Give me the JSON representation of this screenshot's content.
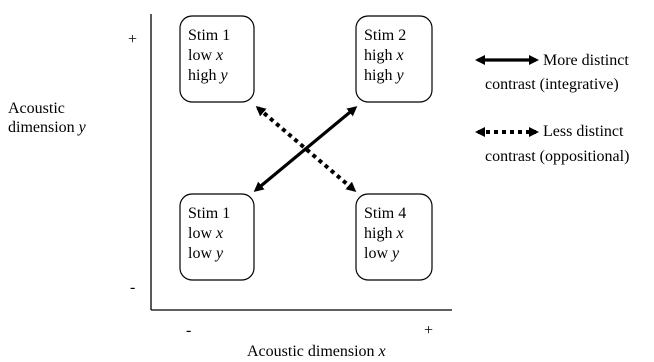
{
  "axes": {
    "y_label": [
      "Acoustic",
      "dimension",
      "y"
    ],
    "x_label": [
      "Acoustic dimension",
      "x"
    ],
    "y_plus": "+",
    "y_minus": "-",
    "x_minus": "-",
    "x_plus": "+"
  },
  "boxes": [
    {
      "name": "stim-box-top-left",
      "lines": [
        [
          "Stim 1",
          ""
        ],
        [
          "low ",
          "x"
        ],
        [
          "high ",
          "y"
        ]
      ]
    },
    {
      "name": "stim-box-top-right",
      "lines": [
        [
          "Stim 2",
          ""
        ],
        [
          "high ",
          "x"
        ],
        [
          "high ",
          "y"
        ]
      ]
    },
    {
      "name": "stim-box-bottom-left",
      "lines": [
        [
          "Stim 1",
          ""
        ],
        [
          "low ",
          "x"
        ],
        [
          "low ",
          "y"
        ]
      ]
    },
    {
      "name": "stim-box-bottom-right",
      "lines": [
        [
          "Stim 4",
          ""
        ],
        [
          "high ",
          "x"
        ],
        [
          "low ",
          "y"
        ]
      ]
    }
  ],
  "legend": [
    {
      "style": "solid",
      "line1": "More distinct",
      "line2": "contrast (integrative)"
    },
    {
      "style": "dotted",
      "line1": "Less distinct",
      "line2": "contrast (oppositional)"
    }
  ]
}
